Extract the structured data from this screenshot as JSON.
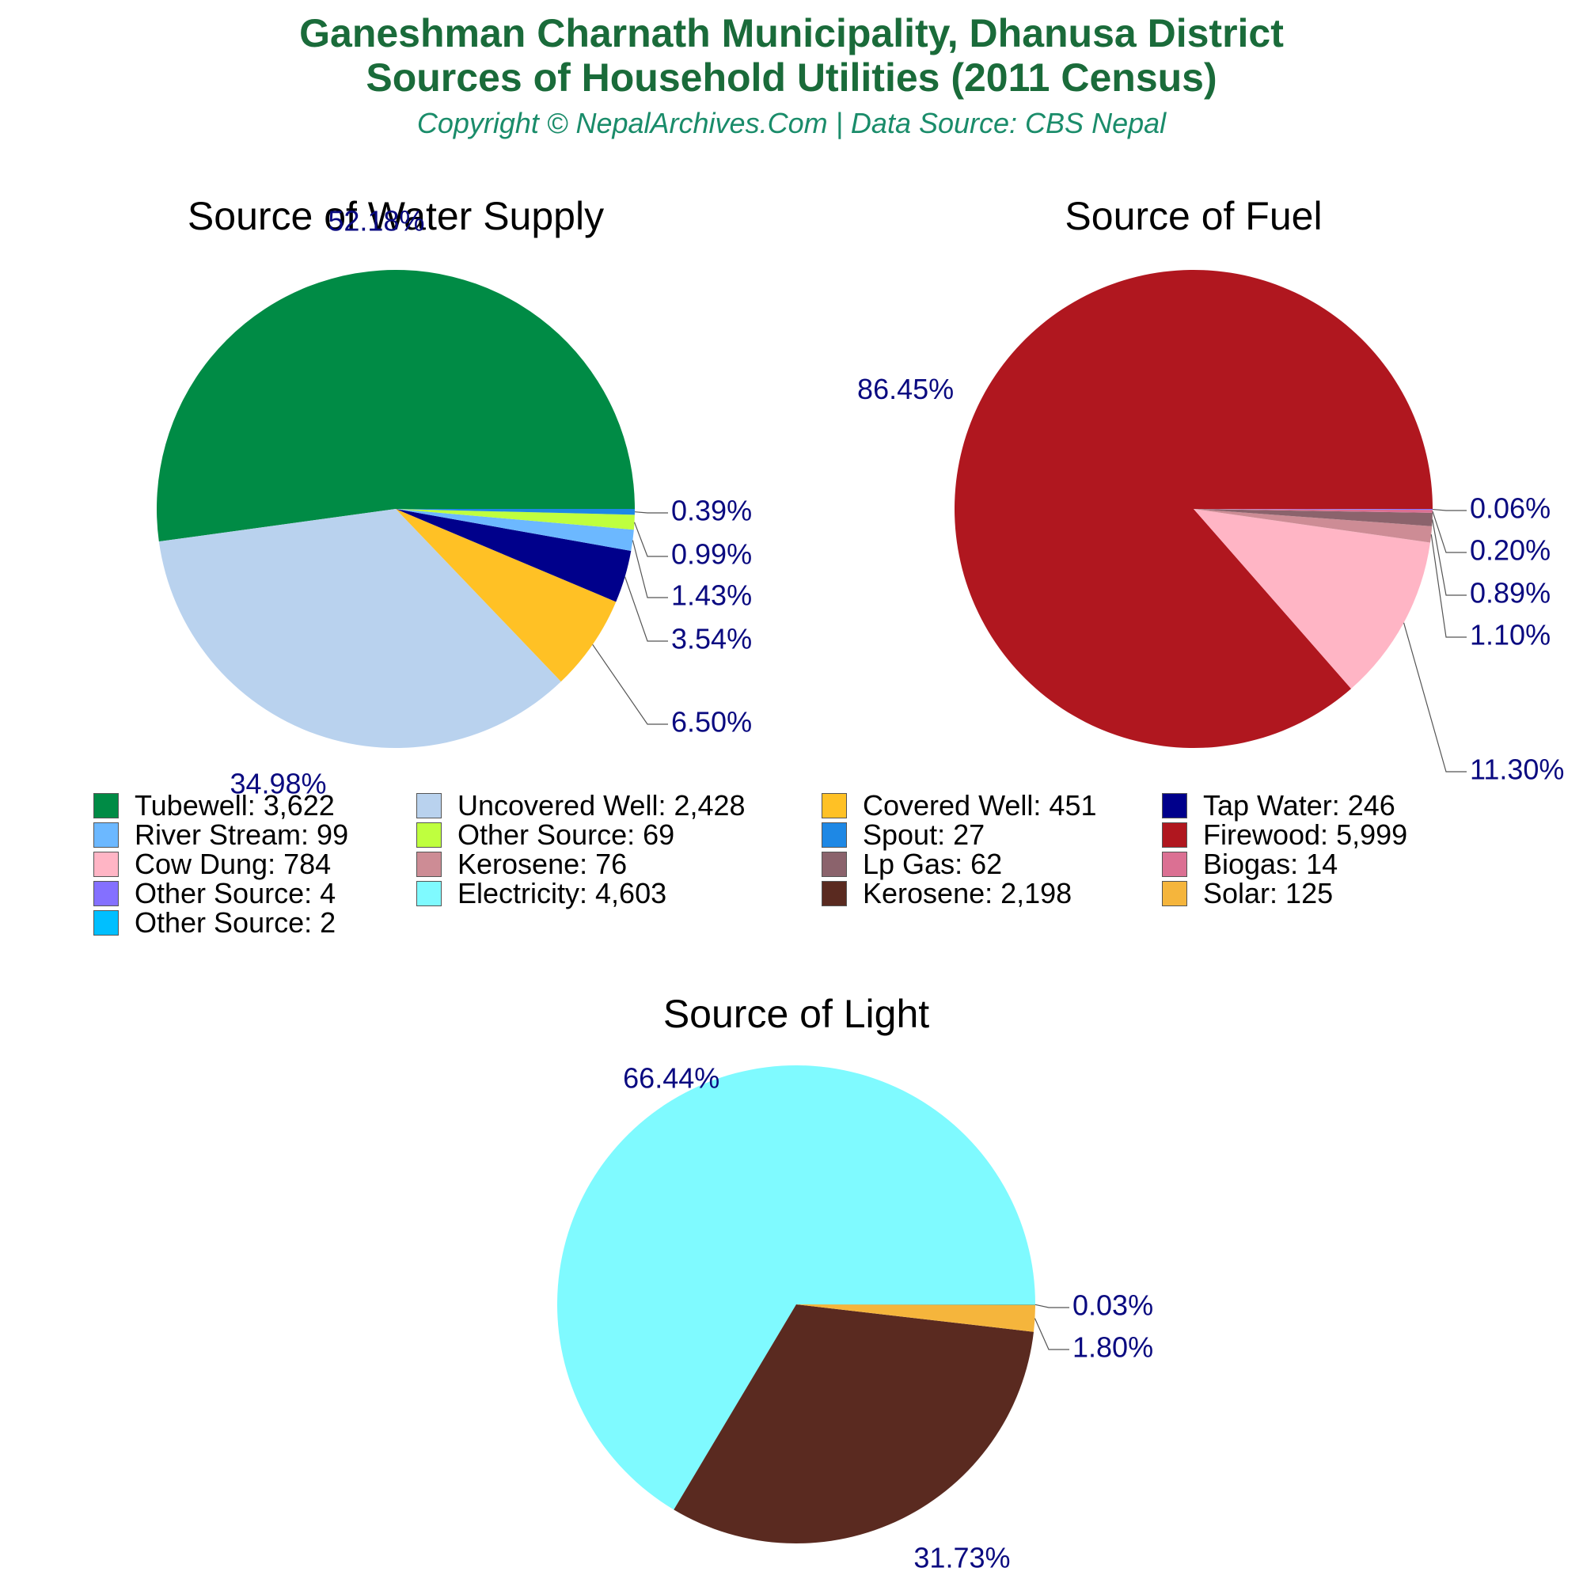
{
  "header": {
    "title_line1": "Ganeshman Charnath Municipality, Dhanusa District",
    "title_line2": "Sources of Household Utilities (2011 Census)",
    "subtitle": "Copyright © NepalArchives.Com | Data Source: CBS Nepal"
  },
  "chart_data": [
    {
      "type": "pie",
      "title": "Source of Water Supply",
      "slices": [
        {
          "name": "Tubewell",
          "value": 3622,
          "percent_label": "52.18%",
          "color": "#008b45"
        },
        {
          "name": "Uncovered Well",
          "value": 2428,
          "percent_label": "34.98%",
          "color": "#b9d2ee"
        },
        {
          "name": "Covered Well",
          "value": 451,
          "percent_label": "6.50%",
          "color": "#ffc125"
        },
        {
          "name": "Tap Water",
          "value": 246,
          "percent_label": "3.54%",
          "color": "#00008b"
        },
        {
          "name": "River Stream",
          "value": 99,
          "percent_label": "1.43%",
          "color": "#6cb8ff"
        },
        {
          "name": "Other Source",
          "value": 69,
          "percent_label": "0.99%",
          "color": "#bfff3e"
        },
        {
          "name": "Spout",
          "value": 27,
          "percent_label": "0.39%",
          "color": "#1e88e5"
        }
      ]
    },
    {
      "type": "pie",
      "title": "Source of Fuel",
      "slices": [
        {
          "name": "Firewood",
          "value": 5999,
          "percent_label": "86.45%",
          "color": "#b0171f"
        },
        {
          "name": "Cow Dung",
          "value": 784,
          "percent_label": "11.30%",
          "color": "#ffb5c5"
        },
        {
          "name": "Kerosene",
          "value": 76,
          "percent_label": "1.10%",
          "color": "#cd8c95"
        },
        {
          "name": "Lp Gas",
          "value": 62,
          "percent_label": "0.89%",
          "color": "#8b636c"
        },
        {
          "name": "Biogas",
          "value": 14,
          "percent_label": "0.20%",
          "color": "#db7093"
        },
        {
          "name": "Other Source",
          "value": 4,
          "percent_label": "0.06%",
          "color": "#8470ff"
        }
      ]
    },
    {
      "type": "pie",
      "title": "Source of Light",
      "slices": [
        {
          "name": "Electricity",
          "value": 4603,
          "percent_label": "66.44%",
          "color": "#7ffaff"
        },
        {
          "name": "Kerosene",
          "value": 2198,
          "percent_label": "31.73%",
          "color": "#5a2a20"
        },
        {
          "name": "Solar",
          "value": 125,
          "percent_label": "1.80%",
          "color": "#f5b53c"
        },
        {
          "name": "Other Source",
          "value": 2,
          "percent_label": "0.03%",
          "color": "#00bfff"
        }
      ]
    }
  ],
  "legend": [
    {
      "label": "Tubewell: 3,622",
      "color": "#008b45"
    },
    {
      "label": "Uncovered Well: 2,428",
      "color": "#b9d2ee"
    },
    {
      "label": "Covered Well: 451",
      "color": "#ffc125"
    },
    {
      "label": "Tap Water: 246",
      "color": "#00008b"
    },
    {
      "label": "River Stream: 99",
      "color": "#6cb8ff"
    },
    {
      "label": "Other Source: 69",
      "color": "#bfff3e"
    },
    {
      "label": "Spout: 27",
      "color": "#1e88e5"
    },
    {
      "label": "Firewood: 5,999",
      "color": "#b0171f"
    },
    {
      "label": "Cow Dung: 784",
      "color": "#ffb5c5"
    },
    {
      "label": "Kerosene: 76",
      "color": "#cd8c95"
    },
    {
      "label": "Lp Gas: 62",
      "color": "#8b636c"
    },
    {
      "label": "Biogas: 14",
      "color": "#db7093"
    },
    {
      "label": "Other Source: 4",
      "color": "#8470ff"
    },
    {
      "label": "Electricity: 4,603",
      "color": "#7ffaff"
    },
    {
      "label": "Kerosene: 2,198",
      "color": "#5a2a20"
    },
    {
      "label": "Solar: 125",
      "color": "#f5b53c"
    },
    {
      "label": "Other Source: 2",
      "color": "#00bfff"
    }
  ]
}
